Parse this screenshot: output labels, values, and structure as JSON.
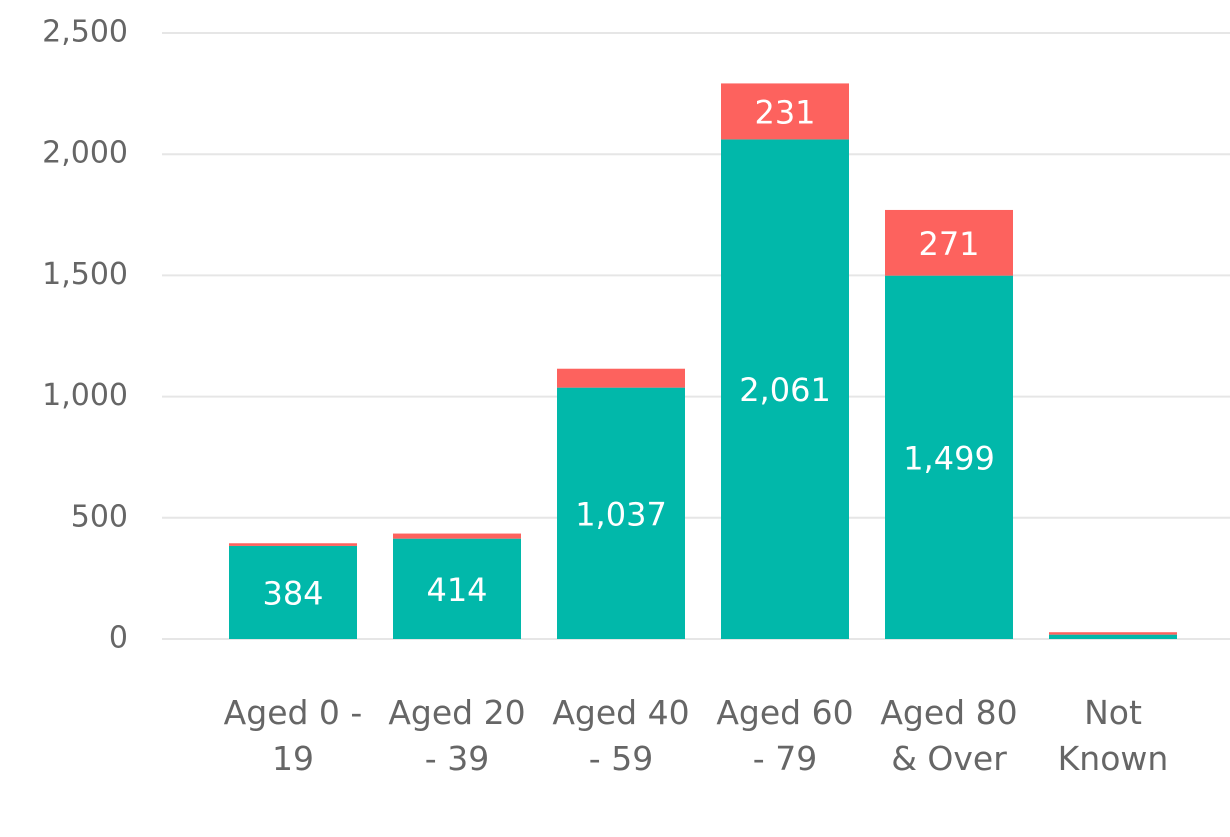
{
  "chart_data": {
    "type": "stacked_bar",
    "categories": [
      "Aged 0 - 19",
      "Aged 20 - 39",
      "Aged 40 - 59",
      "Aged 60 - 79",
      "Aged 80 & Over",
      "Not Known"
    ],
    "series": [
      {
        "color": "#01b8aa",
        "values": [
          384,
          414,
          1037,
          2061,
          1499,
          18
        ],
        "value_labels": [
          "384",
          "414",
          "1,037",
          "2,061",
          "1,499",
          null
        ]
      },
      {
        "color": "#fd625e",
        "values": [
          11,
          21,
          78,
          231,
          271,
          10
        ],
        "value_labels": [
          null,
          null,
          null,
          "231",
          "271",
          null
        ]
      }
    ],
    "ylim": [
      0,
      2500
    ],
    "yticks": [
      0,
      500,
      {
        "value": 1000,
        "label": "1,000"
      },
      {
        "value": 1500,
        "label": "1,500"
      },
      {
        "value": 2000,
        "label": "2,000"
      },
      {
        "value": 2500,
        "label": "2,500"
      }
    ],
    "grid": true
  }
}
